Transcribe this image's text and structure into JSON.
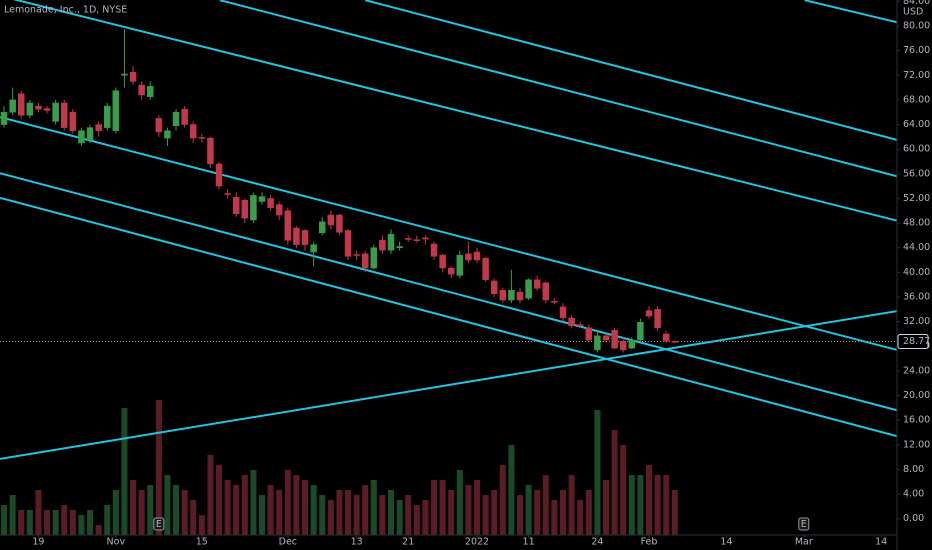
{
  "chart_data": {
    "type": "candlestick",
    "title": "Lemonade, Inc., 1D, NYSE",
    "currency": "USD",
    "open": [
      64,
      66,
      69,
      65.5,
      67,
      66.6,
      64.5,
      67.5,
      66,
      61,
      61.5,
      64,
      63.5,
      63,
      72,
      72.5,
      70.4,
      68.5,
      65,
      61.8,
      63.8,
      66.5,
      64,
      61.9,
      61.8,
      57.6,
      52.8,
      52.2,
      51.7,
      48.5,
      51.5,
      52,
      51,
      50,
      47.2,
      46.8,
      43.3,
      46.4,
      49.3,
      49.3,
      46.8,
      42.9,
      43,
      40.7,
      45.2,
      43.6,
      44,
      45.5,
      45.3,
      45.6,
      44.6,
      42.8,
      40.7,
      39.5,
      43,
      43.3,
      42.3,
      38.6,
      37.1,
      35.5,
      36.8,
      35.8,
      38.8,
      38.3,
      35.3,
      34.4,
      32.6,
      31.5,
      31,
      27.4,
      29.7,
      30.6,
      28.8,
      27.7,
      29,
      33.8,
      34,
      30,
      28.8
    ],
    "high": [
      67,
      70,
      69.5,
      68,
      67.5,
      67,
      68,
      68,
      66.5,
      63.5,
      64,
      64.5,
      67.5,
      70,
      79.5,
      73.5,
      71,
      71,
      65.5,
      63.5,
      66.5,
      67,
      64.5,
      62.5,
      62,
      58,
      53.5,
      53,
      52,
      53,
      53,
      52.5,
      51.5,
      50.5,
      47.5,
      47,
      45,
      49,
      50,
      49.5,
      47,
      43.5,
      43.5,
      44.5,
      46,
      47,
      45,
      46,
      46,
      46,
      45,
      43,
      41,
      43.5,
      45,
      44,
      42.5,
      39,
      37.5,
      40.4,
      37.5,
      39,
      39.5,
      38.5,
      35.8,
      35,
      33,
      32,
      31.5,
      30.5,
      30,
      31,
      29.5,
      29.5,
      32.5,
      34.5,
      34.5,
      30.5,
      29
    ],
    "low": [
      63.5,
      65.5,
      65,
      65,
      66,
      65.8,
      64,
      63,
      62.5,
      60.5,
      61,
      62,
      63,
      62.5,
      70,
      70.5,
      68,
      68,
      62,
      60.5,
      63,
      63.5,
      61,
      61,
      57,
      53.5,
      52,
      49,
      48,
      48,
      51,
      50,
      48.5,
      44.5,
      44,
      43.5,
      41,
      46,
      47,
      46,
      42,
      42,
      40,
      40.5,
      43,
      43,
      43.5,
      45,
      44.8,
      44.5,
      42,
      40,
      39,
      39,
      41.5,
      41.5,
      38.5,
      36,
      35,
      35,
      35,
      35.5,
      37,
      35,
      34.8,
      32,
      31,
      31,
      28.5,
      27,
      28.5,
      27.5,
      27,
      27.5,
      28.8,
      32.5,
      30.5,
      28.5,
      28.5
    ],
    "close": [
      66,
      68,
      65.5,
      67.5,
      66.5,
      66.3,
      67.5,
      63.5,
      63,
      63,
      63.5,
      63,
      67,
      69.5,
      72.2,
      71,
      68.8,
      70.2,
      62.8,
      63,
      66,
      64,
      61.8,
      61.8,
      57.6,
      54,
      52.7,
      49.5,
      48.8,
      52.5,
      52.3,
      50.5,
      49.3,
      45.2,
      44.5,
      44.5,
      44.5,
      48.2,
      47.7,
      46.5,
      42.6,
      42.8,
      40.7,
      44,
      43.6,
      46.2,
      44.2,
      45.4,
      45.2,
      45.4,
      42.6,
      40.7,
      39.7,
      42.8,
      42,
      42,
      38.8,
      36.5,
      35.5,
      37.1,
      35.5,
      38.8,
      37.4,
      35.5,
      35.2,
      32.6,
      31.3,
      31.4,
      29,
      29.7,
      29,
      27.7,
      27.4,
      29,
      31.9,
      32.9,
      31,
      28.8,
      28.77
    ],
    "volume": [
      30,
      40,
      25,
      25,
      45,
      25,
      25,
      30,
      25,
      20,
      25,
      10,
      30,
      45,
      127,
      55,
      45,
      50,
      135,
      60,
      50,
      45,
      35,
      20,
      80,
      70,
      55,
      50,
      60,
      65,
      40,
      50,
      45,
      65,
      60,
      55,
      50,
      40,
      35,
      45,
      45,
      40,
      50,
      55,
      40,
      45,
      35,
      40,
      30,
      35,
      55,
      55,
      45,
      65,
      50,
      55,
      40,
      45,
      70,
      90,
      40,
      50,
      45,
      60,
      35,
      45,
      60,
      35,
      45,
      125,
      55,
      105,
      90,
      60,
      60,
      70,
      60,
      60,
      45
    ],
    "volume_lim": [
      0,
      150
    ],
    "up_color": "#3a9d4b",
    "down_color": "#c2394b",
    "volume_up_color": "#1c4a26",
    "volume_down_color": "#5a1d25",
    "line_color": "#22c4e0",
    "last_price": 28.77,
    "xlim": [
      -0.47,
      103.84
    ],
    "xticks": [
      {
        "value": 4,
        "label": "19"
      },
      {
        "value": 13,
        "label": "Nov"
      },
      {
        "value": 23,
        "label": "15"
      },
      {
        "value": 33,
        "label": "Dec"
      },
      {
        "value": 41,
        "label": "13"
      },
      {
        "value": 47,
        "label": "21"
      },
      {
        "value": 55,
        "label": "2022"
      },
      {
        "value": 61,
        "label": "11"
      },
      {
        "value": 69,
        "label": "24"
      },
      {
        "value": 75,
        "label": "Feb"
      },
      {
        "value": 84,
        "label": "14"
      },
      {
        "value": 93,
        "label": "Mar"
      },
      {
        "value": 102,
        "label": "14"
      }
    ],
    "ylim": [
      -2.65,
      84.22
    ],
    "yticks": [
      {
        "value": 0,
        "label": "0.00"
      },
      {
        "value": 4,
        "label": "4.00"
      },
      {
        "value": 8,
        "label": "8.00"
      },
      {
        "value": 12,
        "label": "12.00"
      },
      {
        "value": 16,
        "label": "16.00"
      },
      {
        "value": 20,
        "label": "20.00"
      },
      {
        "value": 24,
        "label": "24.00"
      },
      {
        "value": 28,
        "label": "28.00"
      },
      {
        "value": 32,
        "label": "32.00"
      },
      {
        "value": 36,
        "label": "36.00"
      },
      {
        "value": 40,
        "label": "40.00"
      },
      {
        "value": 44,
        "label": "44.00"
      },
      {
        "value": 48,
        "label": "48.00"
      },
      {
        "value": 52,
        "label": "52.00"
      },
      {
        "value": 56,
        "label": "56.00"
      },
      {
        "value": 60,
        "label": "60.00"
      },
      {
        "value": 64,
        "label": "64.00"
      },
      {
        "value": 68,
        "label": "68.00"
      },
      {
        "value": 72,
        "label": "72.00"
      },
      {
        "value": 76,
        "label": "76.00"
      },
      {
        "value": 80,
        "label": "80.00"
      },
      {
        "value": 84,
        "label": "84.00"
      }
    ],
    "trend_lines": [
      {
        "x": [
          -0.47,
          103.84
        ],
        "y": [
          65.2,
          27.4
        ]
      },
      {
        "x": [
          -0.47,
          103.84
        ],
        "y": [
          56.1,
          17.6
        ]
      },
      {
        "x": [
          -0.47,
          103.84
        ],
        "y": [
          52.1,
          13.4
        ]
      },
      {
        "x": [
          -0.47,
          103.84
        ],
        "y": [
          84.9,
          48.4
        ]
      },
      {
        "x": [
          25.1,
          103.84
        ],
        "y": [
          84.2,
          55.6
        ]
      },
      {
        "x": [
          42,
          103.84
        ],
        "y": [
          84.2,
          61.5
        ]
      },
      {
        "x": [
          93.1,
          103.84
        ],
        "y": [
          84.2,
          80.6
        ]
      },
      {
        "x": [
          -0.47,
          103.84
        ],
        "y": [
          9.7,
          33.7
        ]
      }
    ],
    "earnings": [
      {
        "x": 18,
        "label": "E"
      },
      {
        "x": 93,
        "label": "E"
      }
    ]
  }
}
